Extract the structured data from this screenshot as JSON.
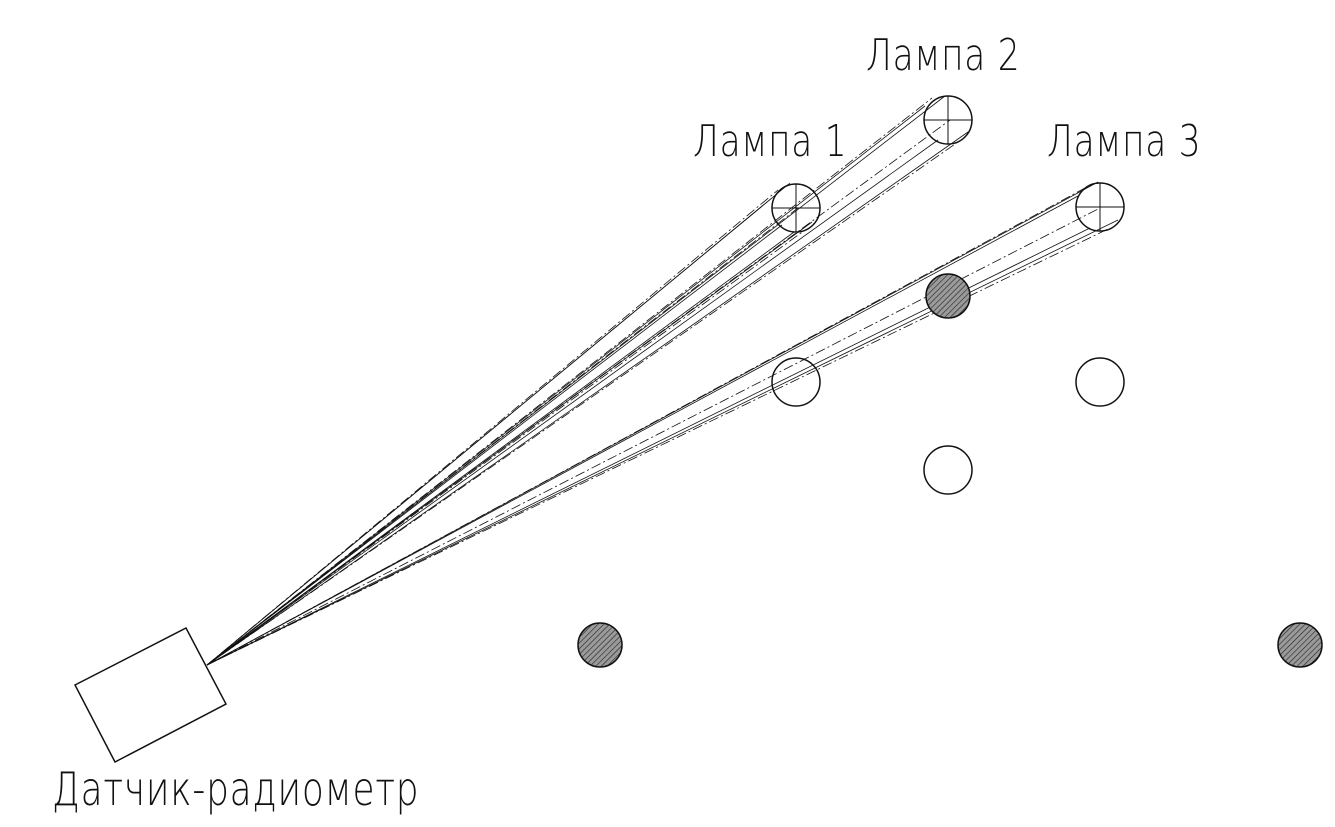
{
  "labels": {
    "lamp1": "Лампа 1",
    "lamp2": "Лампа 2",
    "lamp3": "Лампа 3",
    "sensor": "Датчик-радиометр"
  },
  "colors": {
    "line": "#111111",
    "hatched_fill": "#7a7a7a",
    "background": "#ffffff"
  }
}
